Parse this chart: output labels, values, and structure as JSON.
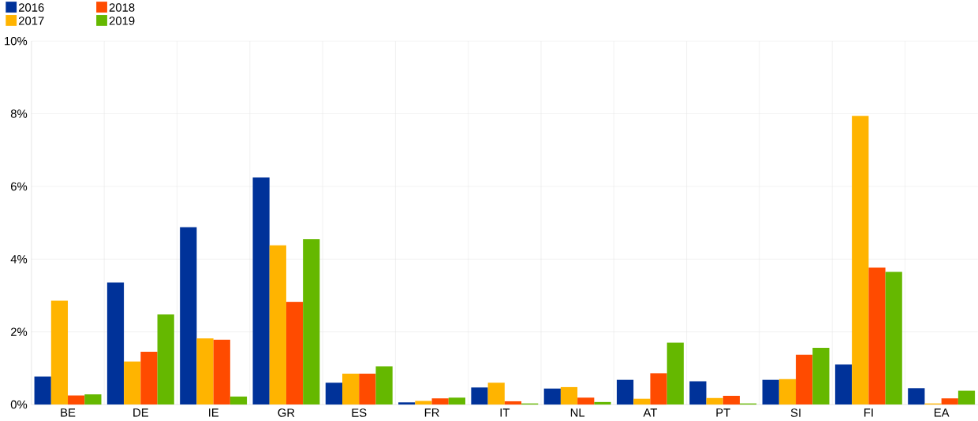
{
  "chart_data": {
    "type": "bar",
    "categories": [
      "BE",
      "DE",
      "IE",
      "GR",
      "ES",
      "FR",
      "IT",
      "NL",
      "AT",
      "PT",
      "SI",
      "FI",
      "EA"
    ],
    "series": [
      {
        "name": "2016",
        "color": "#003299",
        "values": [
          0.77,
          3.36,
          4.88,
          6.25,
          0.6,
          0.06,
          0.47,
          0.44,
          0.68,
          0.64,
          0.68,
          1.1,
          0.45
        ]
      },
      {
        "name": "2017",
        "color": "#ffb400",
        "values": [
          2.86,
          1.18,
          1.82,
          4.38,
          0.85,
          0.1,
          0.6,
          0.48,
          0.16,
          0.18,
          0.7,
          7.94,
          0.03
        ]
      },
      {
        "name": "2018",
        "color": "#ff4b00",
        "values": [
          0.25,
          1.45,
          1.78,
          2.82,
          0.85,
          0.17,
          0.09,
          0.19,
          0.86,
          0.24,
          1.37,
          3.77,
          0.17
        ]
      },
      {
        "name": "2019",
        "color": "#65b800",
        "values": [
          0.28,
          2.48,
          0.22,
          4.55,
          1.05,
          0.19,
          0.03,
          0.07,
          1.7,
          0.03,
          1.56,
          3.65,
          0.38
        ]
      }
    ],
    "ylim": [
      0,
      10
    ],
    "yticks": [
      {
        "value": 0,
        "label": "0%"
      },
      {
        "value": 2,
        "label": "2%"
      },
      {
        "value": 4,
        "label": "4%"
      },
      {
        "value": 6,
        "label": "6%"
      },
      {
        "value": 8,
        "label": "8%"
      },
      {
        "value": 10,
        "label": "10%"
      }
    ],
    "grid": true,
    "legend": "top left"
  }
}
